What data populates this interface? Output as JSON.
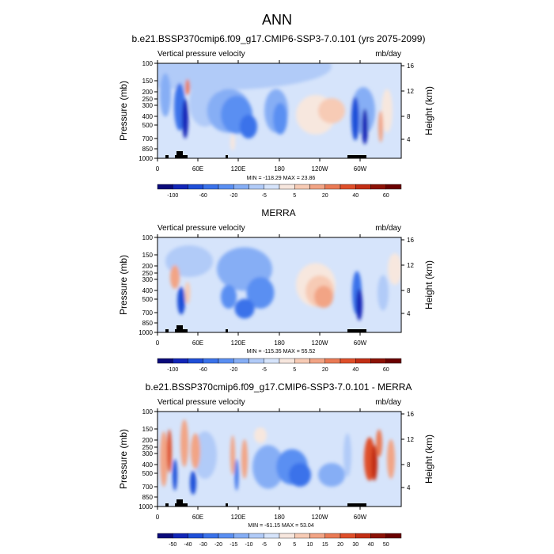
{
  "figure": {
    "title": "ANN"
  },
  "colors": {
    "levels_full": [
      "#0a0a7a",
      "#1226b8",
      "#1f4fd8",
      "#3a72ea",
      "#5a8ff2",
      "#86aef5",
      "#b1cbf8",
      "#d6e4fb",
      "#f7e7de",
      "#f7cbb5",
      "#f2a485",
      "#ea7a55",
      "#df4f2a",
      "#c22e14",
      "#8c1206",
      "#6a0000"
    ],
    "levels_diff": [
      "#0a0a7a",
      "#1226b8",
      "#1f4fd8",
      "#3a72ea",
      "#5a8ff2",
      "#86aef5",
      "#b1cbf8",
      "#d6e4fb",
      "#f7e7de",
      "#f7cbb5",
      "#f2a485",
      "#ea7a55",
      "#df4f2a",
      "#c22e14",
      "#8c1206",
      "#6a0000"
    ],
    "topography": "#000000"
  },
  "chart_data": [
    {
      "type": "heatmap",
      "title": "b.e21.BSSP370cmip6.f09_g17.CMIP6-SSP3-7.0.101 (yrs 2075-2099)",
      "subtitle_left": "Vertical pressure velocity",
      "subtitle_right": "mb/day",
      "ylabel": "Pressure (mb)",
      "ylabel_right": "Height (km)",
      "x_ticks": [
        "0",
        "60E",
        "120E",
        "180",
        "120W",
        "60W"
      ],
      "y_ticks": [
        "100",
        "150",
        "200",
        "250",
        "300",
        "400",
        "500",
        "700",
        "850",
        "1000"
      ],
      "y_ticks_right": [
        "16",
        "12",
        "8",
        "4"
      ],
      "stats": "MIN = -118.29  MAX = 23.86",
      "colorbar_labels": [
        "-100",
        "-60",
        "-20",
        "-5",
        "5",
        "20",
        "40",
        "60"
      ],
      "colorbar_bins": 16,
      "palette": "full",
      "scene": "model"
    },
    {
      "type": "heatmap",
      "title": "MERRA",
      "subtitle_left": "Vertical pressure velocity",
      "subtitle_right": "mb/day",
      "ylabel": "Pressure (mb)",
      "ylabel_right": "Height (km)",
      "x_ticks": [
        "0",
        "60E",
        "120E",
        "180",
        "120W",
        "60W"
      ],
      "y_ticks": [
        "100",
        "150",
        "200",
        "250",
        "300",
        "400",
        "500",
        "700",
        "850",
        "1000"
      ],
      "y_ticks_right": [
        "16",
        "12",
        "8",
        "4"
      ],
      "stats": "MIN = -115.35  MAX = 55.52",
      "colorbar_labels": [
        "-100",
        "-60",
        "-20",
        "-5",
        "5",
        "20",
        "40",
        "60"
      ],
      "colorbar_bins": 16,
      "palette": "full",
      "scene": "obs"
    },
    {
      "type": "heatmap",
      "title": "b.e21.BSSP370cmip6.f09_g17.CMIP6-SSP3-7.0.101 - MERRA",
      "subtitle_left": "Vertical pressure velocity",
      "subtitle_right": "mb/day",
      "ylabel": "Pressure (mb)",
      "ylabel_right": "Height (km)",
      "x_ticks": [
        "0",
        "60E",
        "120E",
        "180",
        "120W",
        "60W"
      ],
      "y_ticks": [
        "100",
        "150",
        "200",
        "250",
        "300",
        "400",
        "500",
        "700",
        "850",
        "1000"
      ],
      "y_ticks_right": [
        "16",
        "12",
        "8",
        "4"
      ],
      "stats": "MIN = -61.15  MAX = 53.04",
      "colorbar_labels": [
        "-50",
        "-40",
        "-30",
        "-20",
        "-15",
        "-10",
        "-5",
        "0",
        "5",
        "10",
        "15",
        "20",
        "30",
        "40",
        "50"
      ],
      "colorbar_bins": 16,
      "palette": "diff",
      "scene": "diff"
    }
  ]
}
